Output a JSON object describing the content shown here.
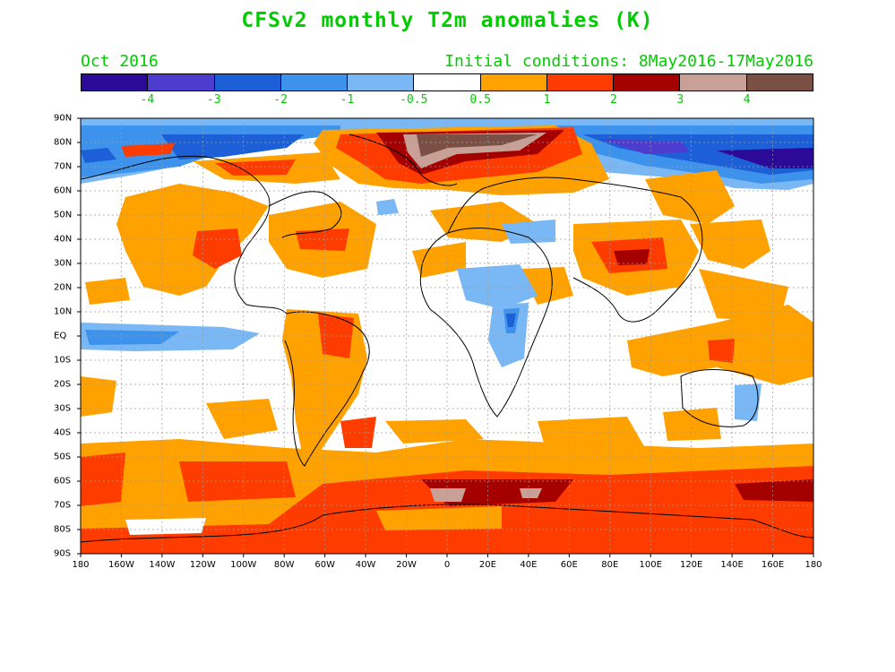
{
  "title": "CFSv2 monthly T2m anomalies (K)",
  "subtitle_left": "Oct 2016",
  "subtitle_right": "Initial conditions: 8May2016-17May2016",
  "colorbar": {
    "colors": [
      "#2b0a98",
      "#4e3ccf",
      "#1c5fd6",
      "#3d93ec",
      "#7ab7f5",
      "#ffffff",
      "#ffa200",
      "#ff3c00",
      "#a50000",
      "#c8a096",
      "#7b5044"
    ],
    "labels": [
      "-4",
      "-3",
      "-2",
      "-1",
      "-0.5",
      "0.5",
      "1",
      "2",
      "3",
      "4"
    ]
  },
  "axes": {
    "lat_labels": [
      "90N",
      "80N",
      "70N",
      "60N",
      "50N",
      "40N",
      "30N",
      "20N",
      "10N",
      "EQ",
      "10S",
      "20S",
      "30S",
      "40S",
      "50S",
      "60S",
      "70S",
      "80S",
      "90S"
    ],
    "lon_labels": [
      "180",
      "160W",
      "140W",
      "120W",
      "100W",
      "80W",
      "60W",
      "40W",
      "20W",
      "0",
      "20E",
      "40E",
      "60E",
      "80E",
      "100E",
      "120E",
      "140E",
      "160E",
      "180"
    ]
  }
}
